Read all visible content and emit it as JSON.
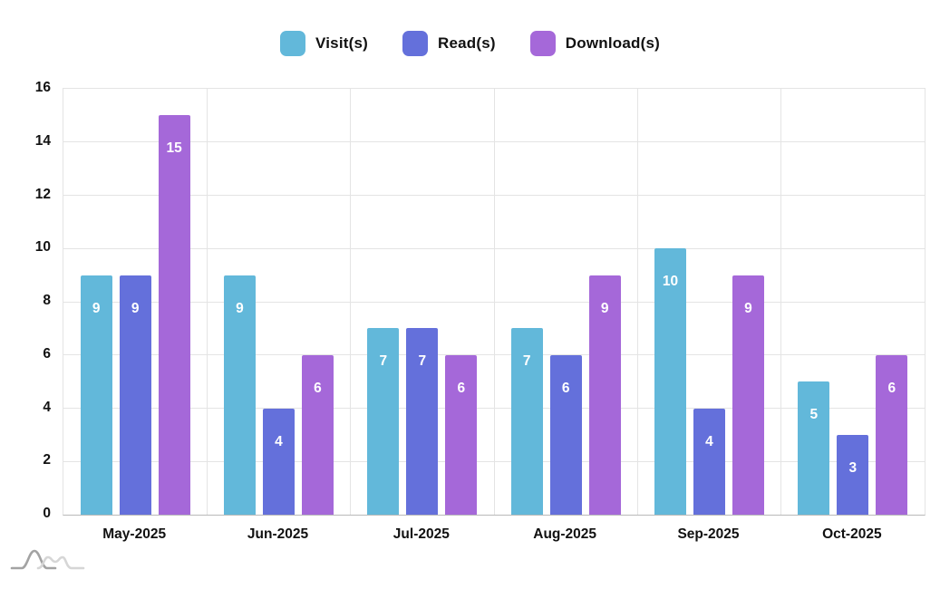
{
  "legend": {
    "items": [
      {
        "label": "Visit(s)",
        "color": "#62b8da"
      },
      {
        "label": "Read(s)",
        "color": "#6470db"
      },
      {
        "label": "Download(s)",
        "color": "#a568d9"
      }
    ]
  },
  "chart_data": {
    "type": "bar",
    "title": "",
    "xlabel": "",
    "ylabel": "",
    "categories": [
      "May-2025",
      "Jun-2025",
      "Jul-2025",
      "Aug-2025",
      "Sep-2025",
      "Oct-2025"
    ],
    "series": [
      {
        "name": "Visit(s)",
        "color": "#62b8da",
        "values": [
          9,
          9,
          7,
          7,
          10,
          5
        ]
      },
      {
        "name": "Read(s)",
        "color": "#6470db",
        "values": [
          9,
          4,
          7,
          6,
          4,
          3
        ]
      },
      {
        "name": "Download(s)",
        "color": "#a568d9",
        "values": [
          15,
          6,
          6,
          9,
          9,
          6
        ]
      }
    ],
    "ylim": [
      0,
      16
    ],
    "yticks": [
      0,
      2,
      4,
      6,
      8,
      10,
      12,
      14,
      16
    ],
    "grid": true,
    "legend_position": "top",
    "value_labels": "inside-top, white",
    "colors": {
      "grid": "#e4e4e4",
      "axis_line": "#b9b9b9",
      "tick_text": "#111111",
      "value_text": "#ffffff"
    }
  },
  "watermark": {
    "icon": "amcharts-logo"
  }
}
